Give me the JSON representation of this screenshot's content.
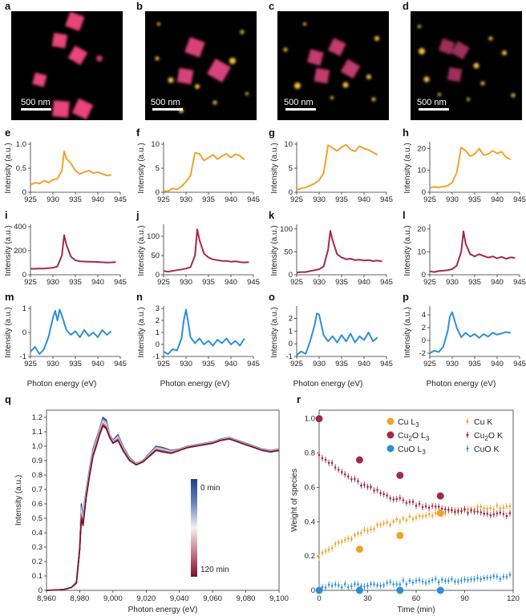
{
  "figure": {
    "image_panels": [
      {
        "label": "a",
        "scale_bar": "500 nm"
      },
      {
        "label": "b",
        "scale_bar": "500 nm"
      },
      {
        "label": "c",
        "scale_bar": "500 nm"
      },
      {
        "label": "d",
        "scale_bar": "500 nm"
      }
    ],
    "colors": {
      "cu": "#F2A22A",
      "cu2o": "#A3294A",
      "cuo": "#2C8FD8",
      "image_bg": "#000000",
      "particle_pink": "#E8457A",
      "particle_yellow": "#F8C43A"
    },
    "ylabel_intensity": "Intensity (a.u.)",
    "xlabel_photon": "Photon energy (eV)"
  },
  "chart_data": [
    {
      "panel": "e",
      "type": "line",
      "series_color": "cu",
      "xlim": [
        925,
        945
      ],
      "ylim": [
        0,
        1.0
      ],
      "xticks": [
        "925",
        "930",
        "935",
        "940",
        "945"
      ],
      "yticks": [
        "0",
        "0.5",
        "1.0"
      ],
      "ylabel": "Intensity (a.u.)",
      "x": [
        925,
        926,
        927,
        928,
        929,
        930,
        931,
        932,
        932.5,
        933,
        934,
        935,
        936,
        937,
        938,
        939,
        940,
        941,
        942,
        943
      ],
      "y": [
        0.15,
        0.2,
        0.18,
        0.24,
        0.2,
        0.26,
        0.28,
        0.45,
        0.85,
        0.7,
        0.6,
        0.45,
        0.38,
        0.42,
        0.45,
        0.4,
        0.42,
        0.38,
        0.35,
        0.36
      ]
    },
    {
      "panel": "f",
      "type": "line",
      "series_color": "cu",
      "xlim": [
        925,
        945
      ],
      "ylim": [
        0,
        10
      ],
      "xticks": [
        "925",
        "930",
        "935",
        "940",
        "945"
      ],
      "yticks": [
        "0",
        "5",
        "10"
      ],
      "ylabel": "Intensity (a.u.)",
      "x": [
        925,
        926,
        927,
        928,
        929,
        930,
        931,
        932,
        933,
        934,
        935,
        936,
        937,
        938,
        939,
        940,
        941,
        942,
        943
      ],
      "y": [
        0.3,
        0.2,
        0.8,
        0.6,
        1.2,
        2.2,
        3.5,
        8.2,
        8.0,
        6.6,
        7.2,
        7.8,
        6.9,
        7.5,
        8.0,
        7.2,
        7.9,
        7.6,
        6.8
      ]
    },
    {
      "panel": "g",
      "type": "line",
      "series_color": "cu",
      "xlim": [
        925,
        945
      ],
      "ylim": [
        0,
        10
      ],
      "xticks": [
        "925",
        "930",
        "935",
        "940",
        "945"
      ],
      "yticks": [
        "0",
        "5",
        "10"
      ],
      "ylabel": "Intensity (a.u.)",
      "x": [
        925,
        926,
        927,
        928,
        929,
        930,
        931,
        932,
        933,
        934,
        935,
        936,
        937,
        938,
        939,
        940,
        941,
        942,
        943
      ],
      "y": [
        0.5,
        0.8,
        1.0,
        1.4,
        1.8,
        2.5,
        4.0,
        9.8,
        9.2,
        8.6,
        9.4,
        9.9,
        8.9,
        8.5,
        9.6,
        9.1,
        8.8,
        8.3,
        7.8
      ]
    },
    {
      "panel": "h",
      "type": "line",
      "series_color": "cu",
      "xlim": [
        925,
        945
      ],
      "ylim": [
        0,
        22
      ],
      "xticks": [
        "925",
        "930",
        "935",
        "940",
        "945"
      ],
      "yticks": [
        "0",
        "10",
        "20"
      ],
      "ylabel": "Intensity (a.u.)",
      "x": [
        925,
        926,
        927,
        928,
        929,
        930,
        931,
        932,
        933,
        934,
        935,
        936,
        937,
        938,
        939,
        940,
        941,
        942,
        943
      ],
      "y": [
        2.0,
        2.5,
        2.2,
        2.6,
        3.0,
        4.5,
        9.0,
        20.5,
        19.0,
        16.5,
        17.5,
        20.0,
        17.0,
        17.5,
        19.0,
        17.8,
        18.5,
        16.0,
        15.0
      ]
    },
    {
      "panel": "i",
      "type": "line",
      "series_color": "cu2o",
      "xlim": [
        925,
        945
      ],
      "ylim": [
        0,
        400
      ],
      "xticks": [
        "925",
        "930",
        "935",
        "940",
        "945"
      ],
      "yticks": [
        "0",
        "200",
        "400"
      ],
      "ylabel": "Intensity (a.u.)",
      "x": [
        925,
        926,
        927,
        928,
        929,
        930,
        931,
        932,
        932.5,
        933,
        934,
        935,
        936,
        937,
        938,
        939,
        940,
        941,
        942,
        943,
        944
      ],
      "y": [
        50,
        50,
        52,
        52,
        55,
        58,
        70,
        160,
        330,
        250,
        150,
        120,
        112,
        110,
        108,
        108,
        106,
        104,
        102,
        103,
        106
      ]
    },
    {
      "panel": "j",
      "type": "line",
      "series_color": "cu2o",
      "xlim": [
        925,
        945
      ],
      "ylim": [
        0,
        125
      ],
      "xticks": [
        "925",
        "930",
        "935",
        "940",
        "945"
      ],
      "yticks": [
        "0",
        "50",
        "100"
      ],
      "ylabel": "Intensity (a.u.)",
      "x": [
        925,
        926,
        927,
        928,
        929,
        930,
        931,
        932,
        932.5,
        933,
        934,
        935,
        936,
        937,
        938,
        939,
        940,
        941,
        942,
        943,
        944
      ],
      "y": [
        10,
        8,
        10,
        12,
        14,
        16,
        20,
        50,
        118,
        90,
        55,
        45,
        40,
        38,
        36,
        36,
        34,
        35,
        33,
        32,
        33
      ]
    },
    {
      "panel": "k",
      "type": "line",
      "series_color": "cu2o",
      "xlim": [
        925,
        945
      ],
      "ylim": [
        0,
        105
      ],
      "xticks": [
        "925",
        "930",
        "935",
        "940",
        "945"
      ],
      "yticks": [
        "0",
        "50",
        "100"
      ],
      "ylabel": "Intensity (a.u.)",
      "x": [
        925,
        926,
        927,
        928,
        929,
        930,
        931,
        932,
        932.5,
        933,
        934,
        935,
        936,
        937,
        938,
        939,
        940,
        941,
        942,
        943,
        944
      ],
      "y": [
        5,
        6,
        6,
        8,
        10,
        12,
        18,
        55,
        96,
        75,
        45,
        38,
        34,
        35,
        32,
        33,
        31,
        32,
        30,
        31,
        29
      ]
    },
    {
      "panel": "l",
      "type": "line",
      "series_color": "cu2o",
      "xlim": [
        925,
        945
      ],
      "ylim": [
        0,
        21
      ],
      "xticks": [
        "925",
        "930",
        "935",
        "940",
        "945"
      ],
      "yticks": [
        "0",
        "10",
        "20"
      ],
      "ylabel": "Intensity (a.u.)",
      "x": [
        925,
        926,
        927,
        928,
        929,
        930,
        931,
        932,
        932.5,
        933,
        934,
        935,
        936,
        937,
        938,
        939,
        940,
        941,
        942,
        943,
        944
      ],
      "y": [
        1.5,
        1.2,
        1.6,
        1.8,
        2.0,
        2.5,
        4.0,
        10.0,
        19.0,
        13.5,
        9.0,
        8.0,
        9.0,
        8.2,
        7.5,
        8.0,
        7.2,
        7.8,
        7.0,
        7.6,
        7.4
      ]
    },
    {
      "panel": "m",
      "type": "line",
      "series_color": "cuo",
      "xlim": [
        925,
        945
      ],
      "ylim": [
        -1,
        1
      ],
      "xticks": [
        "925",
        "930",
        "935",
        "940",
        "945"
      ],
      "yticks": [
        "-1",
        "0",
        "1"
      ],
      "ylabel": "Intensity (a.u.)",
      "x": [
        925,
        926,
        927,
        928,
        929,
        930,
        930.5,
        931,
        931.5,
        932,
        933,
        934,
        935,
        936,
        937,
        938,
        939,
        940,
        941,
        942,
        943
      ],
      "y": [
        -0.8,
        -0.6,
        -0.9,
        -0.7,
        -0.2,
        0.6,
        0.9,
        0.5,
        0.95,
        0.7,
        0.1,
        -0.1,
        0.05,
        -0.2,
        0.1,
        -0.15,
        0.0,
        -0.2,
        0.1,
        -0.1,
        0.05
      ]
    },
    {
      "panel": "n",
      "type": "line",
      "series_color": "cuo",
      "xlim": [
        925,
        945
      ],
      "ylim": [
        -1,
        3
      ],
      "xticks": [
        "925",
        "930",
        "935",
        "940",
        "945"
      ],
      "yticks": [
        "-1",
        "0",
        "1",
        "2",
        "3"
      ],
      "ylabel": "Intensity (a.u.)",
      "x": [
        925,
        926,
        927,
        928,
        929,
        929.5,
        930,
        930.5,
        931,
        932,
        933,
        934,
        935,
        936,
        937,
        938,
        939,
        940,
        941,
        942,
        943
      ],
      "y": [
        -0.6,
        -0.8,
        -0.4,
        -0.5,
        0.5,
        2.0,
        2.9,
        1.8,
        0.6,
        0.1,
        0.5,
        0.0,
        0.3,
        -0.1,
        0.4,
        0.1,
        0.5,
        0.0,
        0.3,
        -0.1,
        0.5
      ]
    },
    {
      "panel": "o",
      "type": "line",
      "series_color": "cuo",
      "xlim": [
        925,
        945
      ],
      "ylim": [
        -1,
        2.8
      ],
      "xticks": [
        "925",
        "930",
        "935",
        "940",
        "945"
      ],
      "yticks": [
        "-1",
        "0",
        "1",
        "2"
      ],
      "ylabel": "Intensity (a.u.)",
      "x": [
        925,
        926,
        927,
        928,
        929,
        929.5,
        930,
        931,
        932,
        933,
        934,
        935,
        936,
        937,
        938,
        939,
        940,
        941,
        942,
        943
      ],
      "y": [
        -0.9,
        -0.6,
        -0.8,
        0.2,
        1.5,
        2.4,
        2.3,
        0.7,
        0.2,
        0.6,
        0.1,
        0.7,
        0.2,
        0.8,
        0.1,
        0.6,
        0.3,
        0.9,
        0.2,
        0.5
      ]
    },
    {
      "panel": "p",
      "type": "line",
      "series_color": "cuo",
      "xlim": [
        925,
        945
      ],
      "ylim": [
        -2.5,
        5
      ],
      "xticks": [
        "925",
        "930",
        "935",
        "940",
        "945"
      ],
      "yticks": [
        "-2",
        "0",
        "2",
        "4"
      ],
      "ylabel": "Intensity (a.u.)",
      "x": [
        925,
        926,
        927,
        928,
        929,
        929.5,
        930,
        931,
        932,
        933,
        934,
        935,
        936,
        937,
        938,
        939,
        940,
        941,
        942,
        943
      ],
      "y": [
        -2.0,
        -1.6,
        -1.8,
        -1.0,
        1.5,
        3.8,
        4.4,
        2.0,
        0.5,
        1.2,
        0.6,
        1.0,
        0.4,
        1.0,
        0.6,
        1.2,
        0.9,
        1.1,
        1.3,
        1.2
      ]
    },
    {
      "panel": "q",
      "type": "line",
      "xlim": [
        8960,
        9100
      ],
      "ylim": [
        0,
        1.25
      ],
      "xlabel": "Photon energy (eV)",
      "ylabel": "Intensity (a.u.)",
      "xticks": [
        "8,960",
        "8,980",
        "9,000",
        "9,020",
        "9,040",
        "9,060",
        "9,080",
        "9,100"
      ],
      "yticks": [
        "0",
        "0.1",
        "0.2",
        "0.3",
        "0.4",
        "0.5",
        "0.6",
        "0.7",
        "0.8",
        "0.9",
        "1.0",
        "1.1",
        "1.2"
      ],
      "colorbar": {
        "top_label": "0 min",
        "bottom_label": "120 min",
        "top_color": "#1F3F8A",
        "bottom_color": "#7A1028"
      },
      "series": [
        {
          "name": "0 min",
          "x": [
            8960,
            8970,
            8975,
            8978,
            8980,
            8981,
            8982,
            8983,
            8984,
            8986,
            8988,
            8990,
            8992,
            8994,
            8996,
            8998,
            9000,
            9003,
            9006,
            9010,
            9014,
            9018,
            9022,
            9026,
            9030,
            9035,
            9040,
            9045,
            9050,
            9055,
            9060,
            9065,
            9070,
            9075,
            9080,
            9085,
            9090,
            9095,
            9100
          ],
          "y": [
            0.0,
            0.005,
            0.02,
            0.06,
            0.3,
            0.6,
            0.5,
            0.62,
            0.7,
            0.85,
            0.98,
            1.05,
            1.12,
            1.2,
            1.18,
            1.08,
            1.04,
            1.08,
            1.0,
            0.92,
            0.88,
            0.9,
            0.95,
            1.0,
            0.99,
            0.97,
            0.98,
            1.0,
            1.01,
            1.02,
            1.03,
            1.05,
            1.06,
            1.04,
            1.02,
            1.0,
            0.98,
            0.97,
            0.98
          ]
        },
        {
          "name": "120 min",
          "x": [
            8960,
            8970,
            8975,
            8978,
            8980,
            8981,
            8982,
            8983,
            8984,
            8986,
            8988,
            8990,
            8992,
            8994,
            8996,
            8998,
            9000,
            9003,
            9006,
            9010,
            9014,
            9018,
            9022,
            9026,
            9030,
            9035,
            9040,
            9045,
            9050,
            9055,
            9060,
            9065,
            9070,
            9075,
            9080,
            9085,
            9090,
            9095,
            9100
          ],
          "y": [
            0.0,
            0.005,
            0.02,
            0.05,
            0.28,
            0.5,
            0.45,
            0.55,
            0.65,
            0.8,
            0.93,
            1.0,
            1.08,
            1.14,
            1.12,
            1.06,
            1.02,
            1.04,
            0.97,
            0.9,
            0.87,
            0.89,
            0.93,
            0.97,
            0.96,
            0.95,
            0.97,
            0.99,
            1.0,
            1.01,
            1.02,
            1.04,
            1.05,
            1.03,
            1.01,
            0.99,
            0.97,
            0.96,
            0.97
          ]
        }
      ]
    },
    {
      "panel": "r",
      "type": "scatter",
      "xlim": [
        0,
        120
      ],
      "ylim": [
        0,
        1.05
      ],
      "xlabel": "Time (min)",
      "ylabel": "Weight of species",
      "xticks": [
        "0",
        "30",
        "60",
        "90",
        "120"
      ],
      "yticks": [
        "0",
        "0.2",
        "0.4",
        "0.6",
        "0.8",
        "1.0"
      ],
      "legend": {
        "col1": [
          "Cu L3",
          "Cu2O L3",
          "CuO L3"
        ],
        "col2": [
          "Cu K",
          "Cu2O K",
          "CuO K"
        ]
      },
      "series": [
        {
          "name": "Cu L3",
          "color": "cu",
          "marker": "dot",
          "x": [
            0,
            25,
            50,
            75
          ],
          "y": [
            0.0,
            0.24,
            0.32,
            0.45
          ]
        },
        {
          "name": "Cu2O L3",
          "color": "cu2o",
          "marker": "dot",
          "x": [
            0,
            25,
            50,
            75
          ],
          "y": [
            1.0,
            0.76,
            0.67,
            0.55
          ]
        },
        {
          "name": "CuO L3",
          "color": "cuo",
          "marker": "dot",
          "x": [
            0,
            25,
            50,
            75
          ],
          "y": [
            0.0,
            0.0,
            0.0,
            0.0
          ]
        },
        {
          "name": "Cu K",
          "color": "cu",
          "marker": "errorbar",
          "model": "rise",
          "start": 0.2,
          "end": 0.51
        },
        {
          "name": "Cu2O K",
          "color": "cu2o",
          "marker": "errorbar",
          "model": "decay",
          "start": 0.8,
          "end": 0.42
        },
        {
          "name": "CuO K",
          "color": "cuo",
          "marker": "errorbar",
          "model": "flat",
          "start": 0.02,
          "end": 0.08
        }
      ]
    }
  ]
}
